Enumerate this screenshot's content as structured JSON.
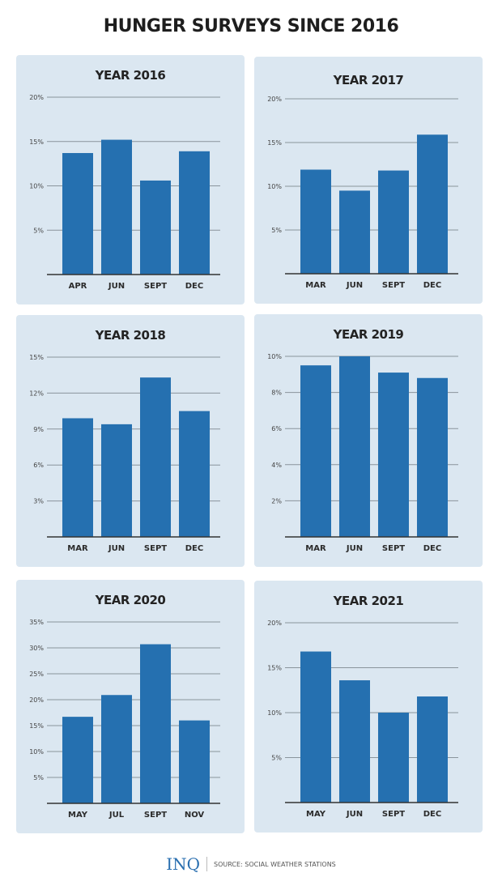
{
  "title": "HUNGER SURVEYS SINCE 2016",
  "footer": {
    "logo": "INQ",
    "source": "SOURCE: SOCIAL WEATHER STATIONS"
  },
  "colors": {
    "bar": "#2570b0",
    "panel": "#dbe7f1",
    "grid": "#8a949c",
    "axis": "#333333"
  },
  "chart_data": [
    {
      "type": "bar",
      "title": "YEAR 2016",
      "categories": [
        "APR",
        "JUN",
        "SEPT",
        "DEC"
      ],
      "values": [
        13.7,
        15.2,
        10.6,
        13.9
      ],
      "yticks": [
        "5%",
        "10%",
        "15%",
        "20%"
      ],
      "ylim": [
        0,
        20
      ],
      "tick_step": 5,
      "grid": true
    },
    {
      "type": "bar",
      "title": "YEAR 2017",
      "categories": [
        "MAR",
        "JUN",
        "SEPT",
        "DEC"
      ],
      "values": [
        11.9,
        9.5,
        11.8,
        15.9
      ],
      "yticks": [
        "5%",
        "10%",
        "15%",
        "20%"
      ],
      "ylim": [
        0,
        20
      ],
      "tick_step": 5,
      "grid": true
    },
    {
      "type": "bar",
      "title": "YEAR 2018",
      "categories": [
        "MAR",
        "JUN",
        "SEPT",
        "DEC"
      ],
      "values": [
        9.9,
        9.4,
        13.3,
        10.5
      ],
      "yticks": [
        "3%",
        "6%",
        "9%",
        "12%",
        "15%"
      ],
      "ylim": [
        0,
        15
      ],
      "tick_step": 3,
      "grid": true
    },
    {
      "type": "bar",
      "title": "YEAR 2019",
      "categories": [
        "MAR",
        "JUN",
        "SEPT",
        "DEC"
      ],
      "values": [
        9.5,
        10.0,
        9.1,
        8.8
      ],
      "yticks": [
        "2%",
        "4%",
        "6%",
        "8%",
        "10%"
      ],
      "ylim": [
        0,
        10
      ],
      "tick_step": 2,
      "grid": true
    },
    {
      "type": "bar",
      "title": "YEAR 2020",
      "categories": [
        "MAY",
        "JUL",
        "SEPT",
        "NOV"
      ],
      "values": [
        16.7,
        20.9,
        30.7,
        16.0
      ],
      "yticks": [
        "5%",
        "10%",
        "15%",
        "20%",
        "25%",
        "30%",
        "35%"
      ],
      "ylim": [
        0,
        35
      ],
      "tick_step": 5,
      "grid": true
    },
    {
      "type": "bar",
      "title": "YEAR 2021",
      "categories": [
        "MAY",
        "JUN",
        "SEPT",
        "DEC"
      ],
      "values": [
        16.8,
        13.6,
        10.0,
        11.8
      ],
      "yticks": [
        "5%",
        "10%",
        "15%",
        "20%"
      ],
      "ylim": [
        0,
        20
      ],
      "tick_step": 5,
      "grid": true
    }
  ]
}
